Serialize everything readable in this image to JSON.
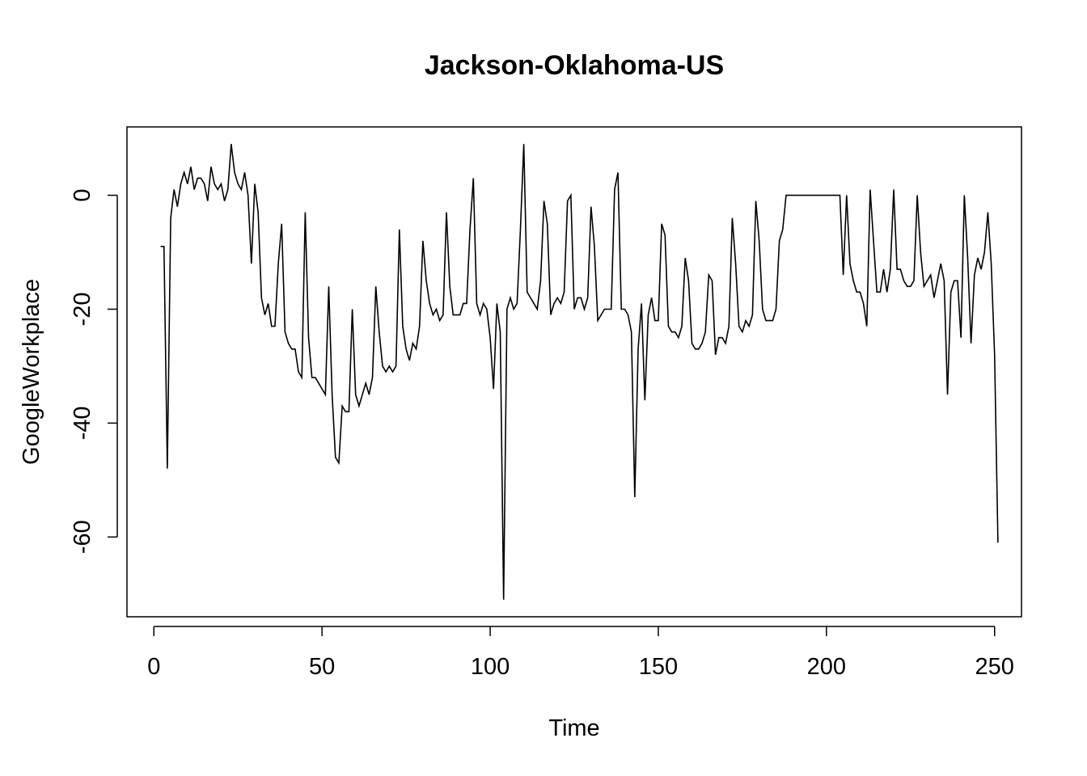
{
  "chart_data": {
    "type": "line",
    "title": "Jackson-Oklahoma-US",
    "xlabel": "Time",
    "ylabel": "GoogleWorkplace",
    "xlim": [
      -8,
      258
    ],
    "ylim": [
      -74,
      12
    ],
    "x_ticks": [
      0,
      50,
      100,
      150,
      200,
      250
    ],
    "y_ticks": [
      -60,
      -40,
      -20,
      0
    ],
    "grid": false,
    "legend": "none",
    "line_color": "#000000",
    "series": [
      {
        "x_start": 2,
        "values": [
          -9,
          -9,
          -48,
          -4,
          1,
          -2,
          2,
          4,
          2,
          5,
          1,
          3,
          3,
          2,
          -1,
          5,
          2,
          1,
          2,
          -1,
          1,
          9,
          4,
          2,
          1,
          4,
          0,
          -12,
          2,
          -3,
          -18,
          -21,
          -19,
          -23,
          -23,
          -12,
          -5,
          -24,
          -26,
          -27,
          -27,
          -31,
          -32,
          -3,
          -25,
          -32,
          -32,
          -33,
          -34,
          -35,
          -16,
          -35,
          -46,
          -47,
          -37,
          -38,
          -38,
          -20,
          -35,
          -37,
          -35,
          -33,
          -35,
          -32,
          -16,
          -24,
          -30,
          -31,
          -30,
          -31,
          -30,
          -6,
          -23,
          -27,
          -29,
          -26,
          -27,
          -23,
          -8,
          -15,
          -19,
          -21,
          -20,
          -22,
          -21,
          -3,
          -16,
          -21,
          -21,
          -21,
          -19,
          -19,
          -6,
          3,
          -19,
          -21,
          -19,
          -20,
          -25,
          -34,
          -19,
          -24,
          -71,
          -20,
          -18,
          -20,
          -19,
          -6,
          9,
          -17,
          -18,
          -19,
          -20,
          -15,
          -1,
          -5,
          -21,
          -19,
          -18,
          -19,
          -17,
          -1,
          0,
          -20,
          -18,
          -18,
          -20,
          -18,
          -2,
          -9,
          -22,
          -21,
          -20,
          -20,
          -20,
          1,
          4,
          -20,
          -20,
          -21,
          -24,
          -53,
          -27,
          -19,
          -36,
          -21,
          -18,
          -22,
          -22,
          -5,
          -7,
          -23,
          -24,
          -24,
          -25,
          -23,
          -11,
          -15,
          -26,
          -27,
          -27,
          -26,
          -24,
          -14,
          -15,
          -28,
          -25,
          -25,
          -26,
          -23,
          -4,
          -12,
          -23,
          -24,
          -22,
          -23,
          -21,
          -1,
          -8,
          -20,
          -22,
          -22,
          -22,
          -20,
          -8,
          -6,
          0,
          0,
          0,
          0,
          0,
          0,
          0,
          0,
          0,
          0,
          0,
          0,
          0,
          0,
          0,
          0,
          0,
          -14,
          0,
          -12,
          -15,
          -17,
          -17,
          -19,
          -23,
          1,
          -8,
          -17,
          -17,
          -13,
          -17,
          -13,
          1,
          -13,
          -13,
          -15,
          -16,
          -16,
          -15,
          0,
          -10,
          -16,
          -15,
          -14,
          -18,
          -15,
          -12,
          -15,
          -35,
          -17,
          -15,
          -15,
          -25,
          0,
          -11,
          -26,
          -14,
          -11,
          -13,
          -10,
          -3,
          -12,
          -28,
          -61
        ]
      }
    ]
  }
}
